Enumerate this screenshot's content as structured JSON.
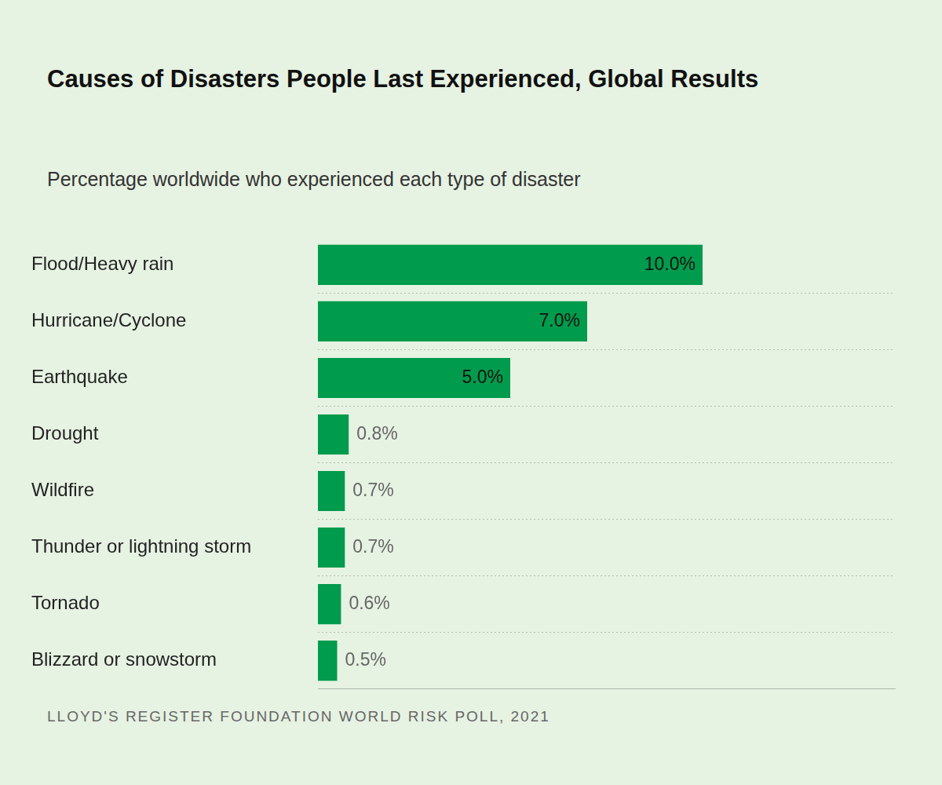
{
  "chart_data": {
    "type": "bar",
    "orientation": "horizontal",
    "title": "Causes of Disasters People Last Experienced, Global Results",
    "subtitle": "Percentage worldwide who experienced each type of disaster",
    "source": "LLOYD'S REGISTER FOUNDATION WORLD RISK POLL, 2021",
    "categories": [
      "Flood/Heavy rain",
      "Hurricane/Cyclone",
      "Earthquake",
      "Drought",
      "Wildfire",
      "Thunder or lightning storm",
      "Tornado",
      "Blizzard or snowstorm"
    ],
    "values": [
      10,
      7,
      5,
      0.8,
      0.7,
      0.7,
      0.6,
      0.5
    ],
    "value_labels": [
      "10.0%",
      "7.0%",
      "5.0%",
      "0.8%",
      "0.7%",
      "0.7%",
      "0.6%",
      "0.5%"
    ],
    "color": "#009b4c",
    "xlim": [
      0,
      15
    ],
    "grid": true,
    "data_labels": true,
    "tick_labels": "y"
  }
}
